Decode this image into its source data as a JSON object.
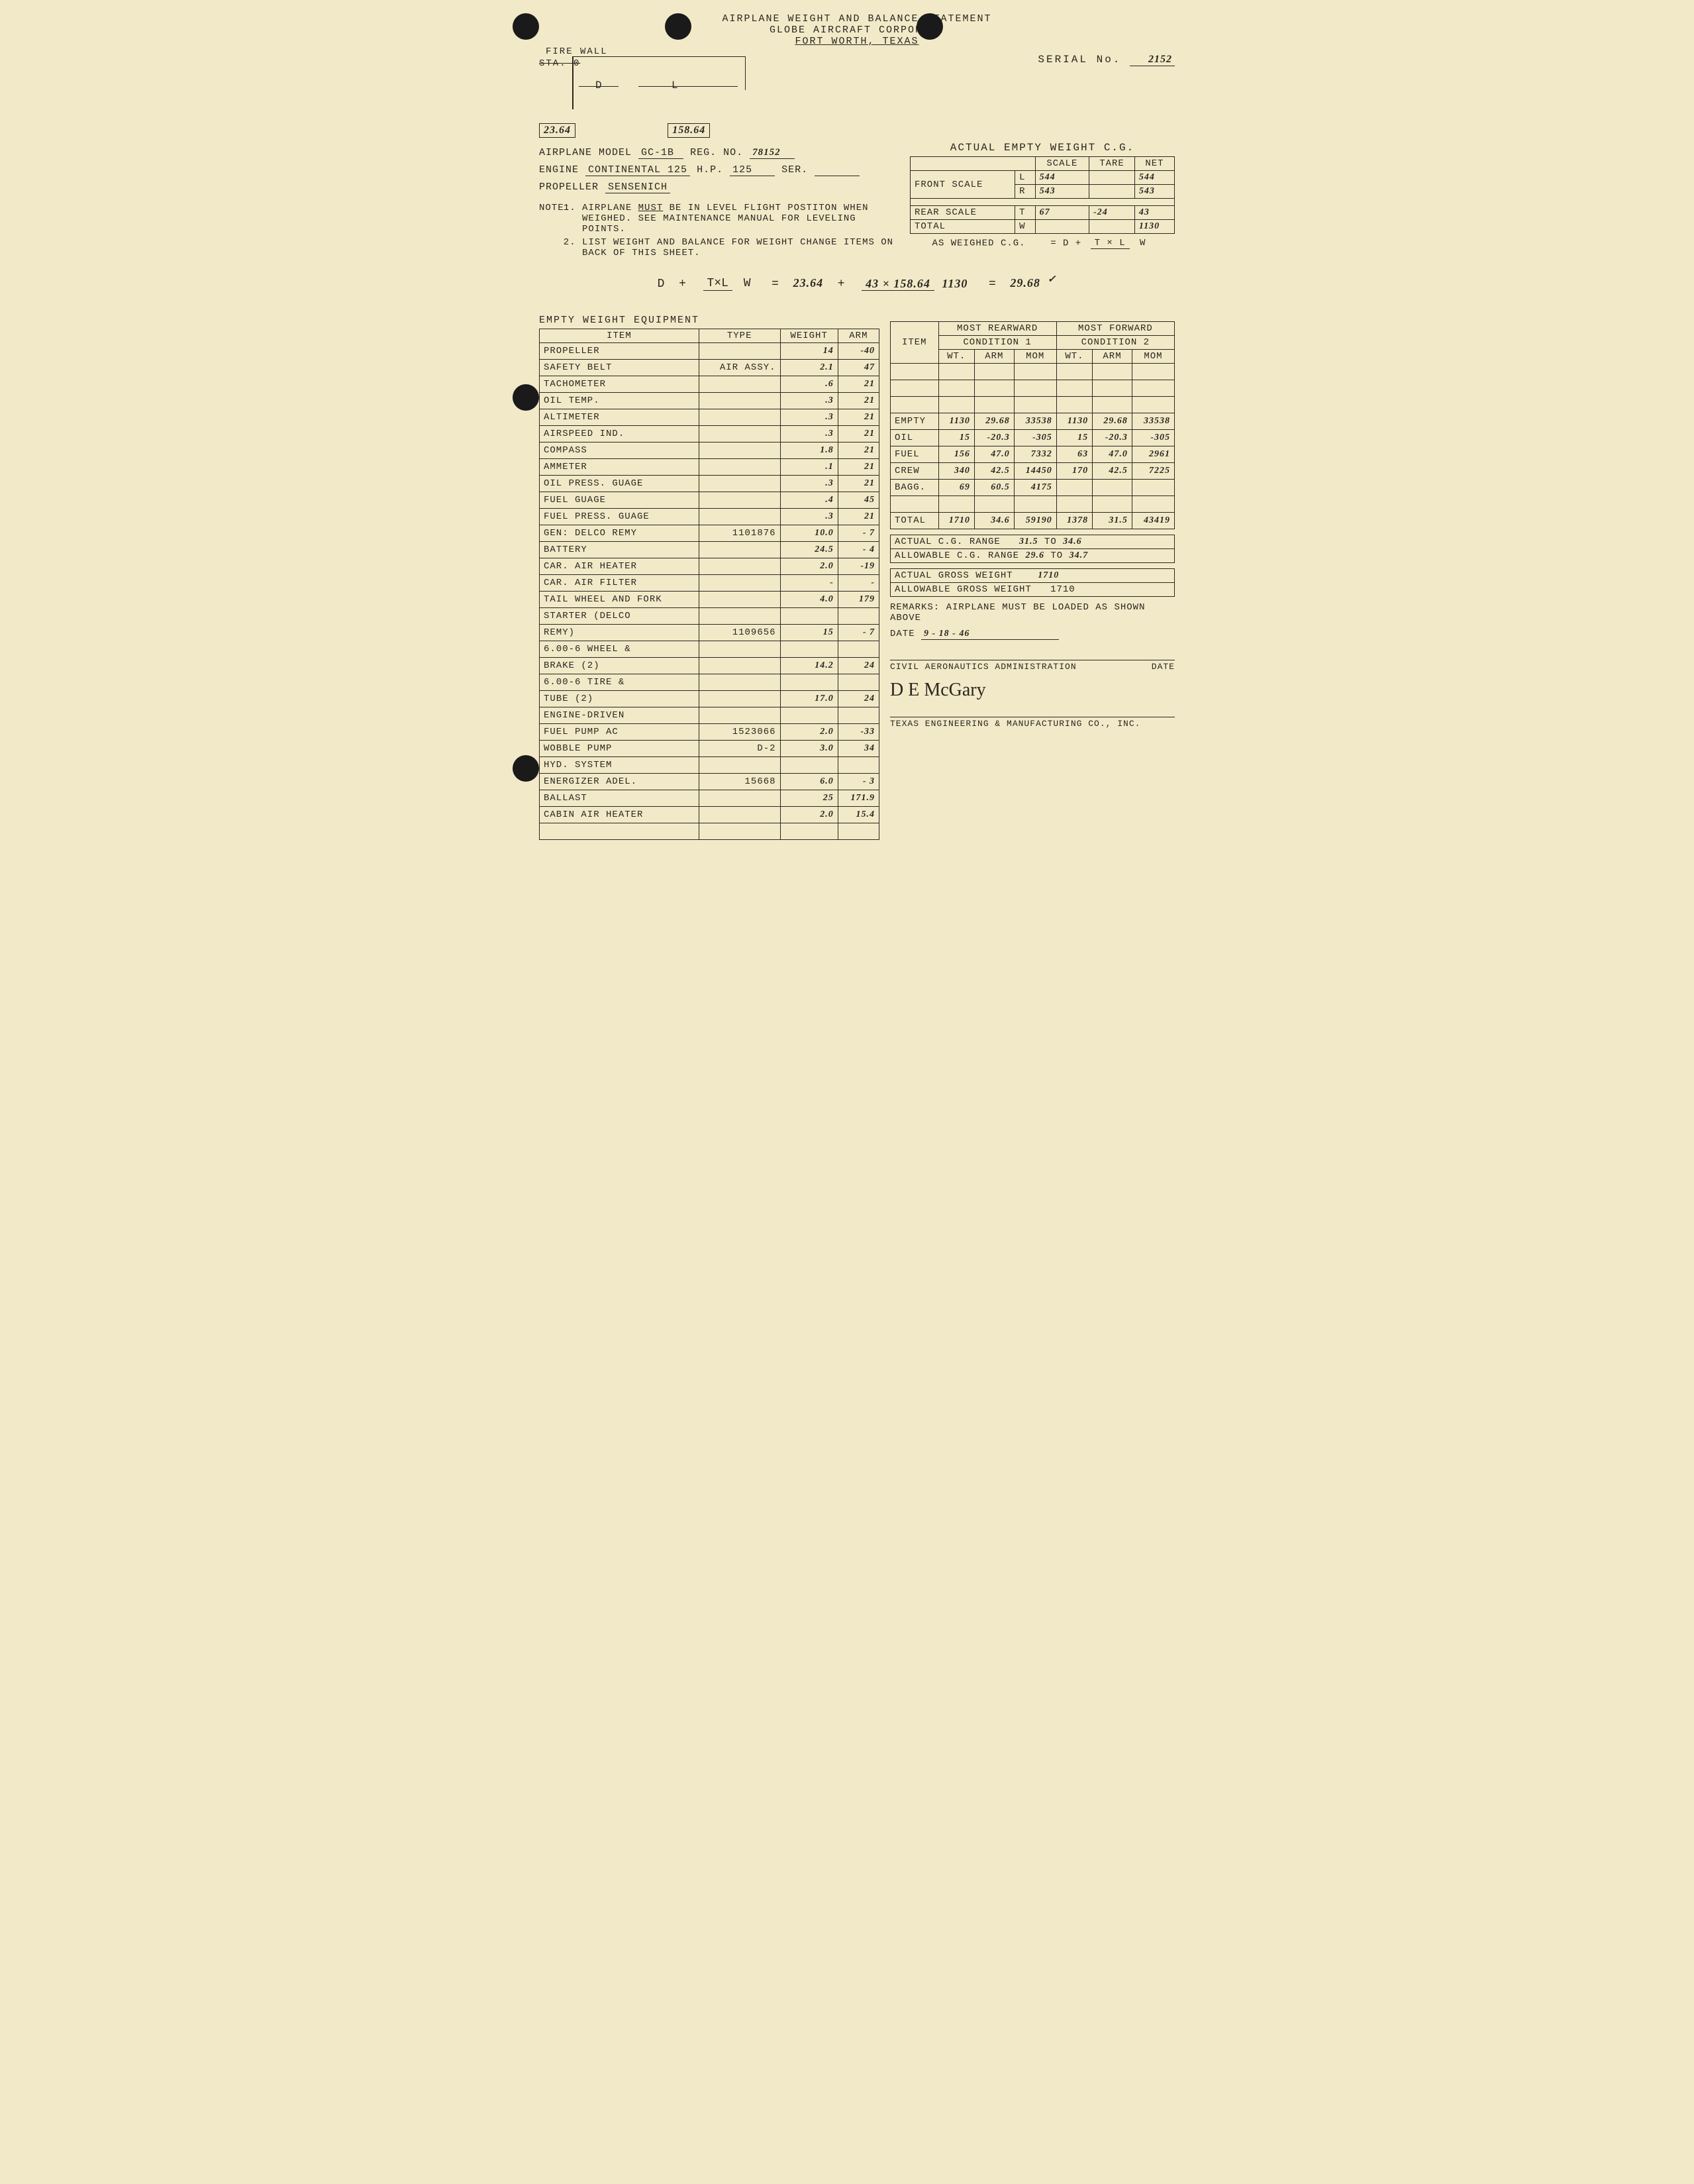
{
  "header": {
    "line1": "AIRPLANE WEIGHT AND BALANCE STATEMENT",
    "line2": "GLOBE AIRCRAFT CORPORATI",
    "line3": "FORT WORTH, TEXAS"
  },
  "serial": {
    "label": "SERIAL No.",
    "value": "2152"
  },
  "diagram": {
    "firewall": "FIRE WALL",
    "sta": "STA. 0",
    "d": "D",
    "l": "L",
    "d_val": "23.64",
    "l_val": "158.64"
  },
  "info": {
    "model_label": "AIRPLANE MODEL",
    "model": "GC-1B",
    "reg_label": "REG. NO.",
    "reg": "78152",
    "engine_label": "ENGINE",
    "engine": "CONTINENTAL 125",
    "hp_label": "H.P.",
    "hp": "125",
    "ser_label": "SER.",
    "prop_label": "PROPELLER",
    "prop": "SENSENICH"
  },
  "note": {
    "label": "NOTE:",
    "n1": "AIRPLANE MUST BE IN LEVEL FLIGHT POSTITON WHEN WEIGHED. SEE MAINTENANCE MANUAL FOR LEVELING POINTS.",
    "n2": "LIST WEIGHT AND BALANCE FOR WEIGHT CHANGE ITEMS ON BACK OF THIS SHEET."
  },
  "cg_table": {
    "title": "ACTUAL EMPTY WEIGHT C.G.",
    "h_scale": "SCALE",
    "h_tare": "TARE",
    "h_net": "NET",
    "front_label": "FRONT SCALE",
    "rear_label": "REAR SCALE",
    "total_label": "TOTAL",
    "rows": {
      "front_l": {
        "side": "L",
        "scale": "544",
        "tare": "",
        "net": "544"
      },
      "front_r": {
        "side": "R",
        "scale": "543",
        "tare": "",
        "net": "543"
      },
      "rear_t": {
        "side": "T",
        "scale": "67",
        "tare": "-24",
        "net": "43"
      },
      "total_w": {
        "side": "W",
        "scale": "",
        "tare": "",
        "net": "1130"
      }
    },
    "formula_label": "AS WEIGHED C.G.",
    "formula_eq": "= D +",
    "formula_num": "T × L",
    "formula_den": "W"
  },
  "calc": {
    "lhs_d": "D",
    "plus": "+",
    "frac_num": "T×L",
    "frac_den": "W",
    "eq": "=",
    "d_val": "23.64",
    "mid_num": "43 × 158.64",
    "mid_den": "1130",
    "result": "29.68",
    "check": "✓"
  },
  "equip": {
    "title": "EMPTY WEIGHT EQUIPMENT",
    "h_item": "ITEM",
    "h_type": "TYPE",
    "h_weight": "WEIGHT",
    "h_arm": "ARM",
    "rows": [
      {
        "item": "PROPELLER",
        "type": "",
        "weight": "14",
        "arm": "-40"
      },
      {
        "item": "SAFETY BELT",
        "type": "AIR ASSY.",
        "weight": "2.1",
        "arm": "47"
      },
      {
        "item": "TACHOMETER",
        "type": "",
        "weight": ".6",
        "arm": "21"
      },
      {
        "item": "OIL TEMP.",
        "type": "",
        "weight": ".3",
        "arm": "21"
      },
      {
        "item": "ALTIMETER",
        "type": "",
        "weight": ".3",
        "arm": "21"
      },
      {
        "item": "AIRSPEED IND.",
        "type": "",
        "weight": ".3",
        "arm": "21"
      },
      {
        "item": "COMPASS",
        "type": "",
        "weight": "1.8",
        "arm": "21"
      },
      {
        "item": "AMMETER",
        "type": "",
        "weight": ".1",
        "arm": "21"
      },
      {
        "item": "OIL PRESS. GUAGE",
        "type": "",
        "weight": ".3",
        "arm": "21"
      },
      {
        "item": "FUEL GUAGE",
        "type": "",
        "weight": ".4",
        "arm": "45"
      },
      {
        "item": "FUEL PRESS. GUAGE",
        "type": "",
        "weight": ".3",
        "arm": "21"
      },
      {
        "item": "GEN: DELCO REMY",
        "type": "1101876",
        "weight": "10.0",
        "arm": "- 7"
      },
      {
        "item": "BATTERY",
        "type": "",
        "weight": "24.5",
        "arm": "- 4"
      },
      {
        "item": "CAR. AIR HEATER",
        "type": "",
        "weight": "2.0",
        "arm": "-19"
      },
      {
        "item": "CAR. AIR FILTER",
        "type": "",
        "weight": "-",
        "arm": "-"
      },
      {
        "item": "TAIL WHEEL AND FORK",
        "type": "",
        "weight": "4.0",
        "arm": "179"
      },
      {
        "item": "STARTER (DELCO",
        "type": "",
        "weight": "",
        "arm": ""
      },
      {
        "item": "REMY)",
        "type": "1109656",
        "weight": "15",
        "arm": "- 7"
      },
      {
        "item": "6.00-6 WHEEL &",
        "type": "",
        "weight": "",
        "arm": ""
      },
      {
        "item": "BRAKE (2)",
        "type": "",
        "weight": "14.2",
        "arm": "24"
      },
      {
        "item": "6.00-6 TIRE &",
        "type": "",
        "weight": "",
        "arm": ""
      },
      {
        "item": "TUBE (2)",
        "type": "",
        "weight": "17.0",
        "arm": "24"
      },
      {
        "item": "ENGINE-DRIVEN",
        "type": "",
        "weight": "",
        "arm": ""
      },
      {
        "item": "FUEL PUMP     AC",
        "type": "1523066",
        "weight": "2.0",
        "arm": "-33"
      },
      {
        "item": "WOBBLE PUMP",
        "type": "D-2",
        "weight": "3.0",
        "arm": "34"
      },
      {
        "item": "HYD. SYSTEM",
        "type": "",
        "weight": "",
        "arm": ""
      },
      {
        "item": "ENERGIZER  ADEL.",
        "type": "15668",
        "weight": "6.0",
        "arm": "- 3"
      },
      {
        "item": "BALLAST",
        "type": "",
        "weight": "25",
        "arm": "171.9"
      },
      {
        "item": "CABIN AIR HEATER",
        "type": "",
        "weight": "2.0",
        "arm": "15.4"
      },
      {
        "item": "",
        "type": "",
        "weight": "",
        "arm": ""
      }
    ]
  },
  "cond": {
    "h_rear": "MOST REARWARD",
    "h_fwd": "MOST FORWARD",
    "sub1": "CONDITION 1",
    "sub2": "CONDITION 2",
    "h_item": "ITEM",
    "h_wt": "WT.",
    "h_arm": "ARM",
    "h_mom": "MOM",
    "rows": [
      {
        "item": "",
        "wt1": "",
        "arm1": "",
        "mom1": "",
        "wt2": "",
        "arm2": "",
        "mom2": ""
      },
      {
        "item": "",
        "wt1": "",
        "arm1": "",
        "mom1": "",
        "wt2": "",
        "arm2": "",
        "mom2": ""
      },
      {
        "item": "",
        "wt1": "",
        "arm1": "",
        "mom1": "",
        "wt2": "",
        "arm2": "",
        "mom2": ""
      },
      {
        "item": "EMPTY",
        "wt1": "1130",
        "arm1": "29.68",
        "mom1": "33538",
        "wt2": "1130",
        "arm2": "29.68",
        "mom2": "33538"
      },
      {
        "item": "OIL",
        "wt1": "15",
        "arm1": "-20.3",
        "mom1": "-305",
        "wt2": "15",
        "arm2": "-20.3",
        "mom2": "-305"
      },
      {
        "item": "FUEL",
        "wt1": "156",
        "arm1": "47.0",
        "mom1": "7332",
        "wt2": "63",
        "arm2": "47.0",
        "mom2": "2961"
      },
      {
        "item": "CREW",
        "wt1": "340",
        "arm1": "42.5",
        "mom1": "14450",
        "wt2": "170",
        "arm2": "42.5",
        "mom2": "7225"
      },
      {
        "item": "BAGG.",
        "wt1": "69",
        "arm1": "60.5",
        "mom1": "4175",
        "wt2": "",
        "arm2": "",
        "mom2": ""
      },
      {
        "item": "",
        "wt1": "",
        "arm1": "",
        "mom1": "",
        "wt2": "",
        "arm2": "",
        "mom2": ""
      }
    ],
    "total_label": "TOTAL",
    "total": {
      "wt1": "1710",
      "arm1": "34.6",
      "mom1": "59190",
      "wt2": "1378",
      "arm2": "31.5",
      "mom2": "43419"
    }
  },
  "range": {
    "actual_cg_label": "ACTUAL C.G. RANGE",
    "actual_cg_from": "31.5",
    "to": "TO",
    "actual_cg_to": "34.6",
    "allow_cg_label": "ALLOWABLE C.G. RANGE",
    "allow_cg_from": "29.6",
    "allow_cg_to": "34.7",
    "actual_gw_label": "ACTUAL GROSS WEIGHT",
    "actual_gw": "1710",
    "allow_gw_label": "ALLOWABLE GROSS WEIGHT",
    "allow_gw": "1710"
  },
  "remarks": {
    "label": "REMARKS:",
    "text": "AIRPLANE MUST BE LOADED AS SHOWN ABOVE",
    "date_label": "DATE",
    "date": "9 - 18 - 46"
  },
  "sig": {
    "caa": "CIVIL AERONAUTICS ADMINISTRATION",
    "date": "DATE",
    "signature": "D E McGary",
    "company": "TEXAS ENGINEERING & MANUFACTURING CO., INC."
  }
}
